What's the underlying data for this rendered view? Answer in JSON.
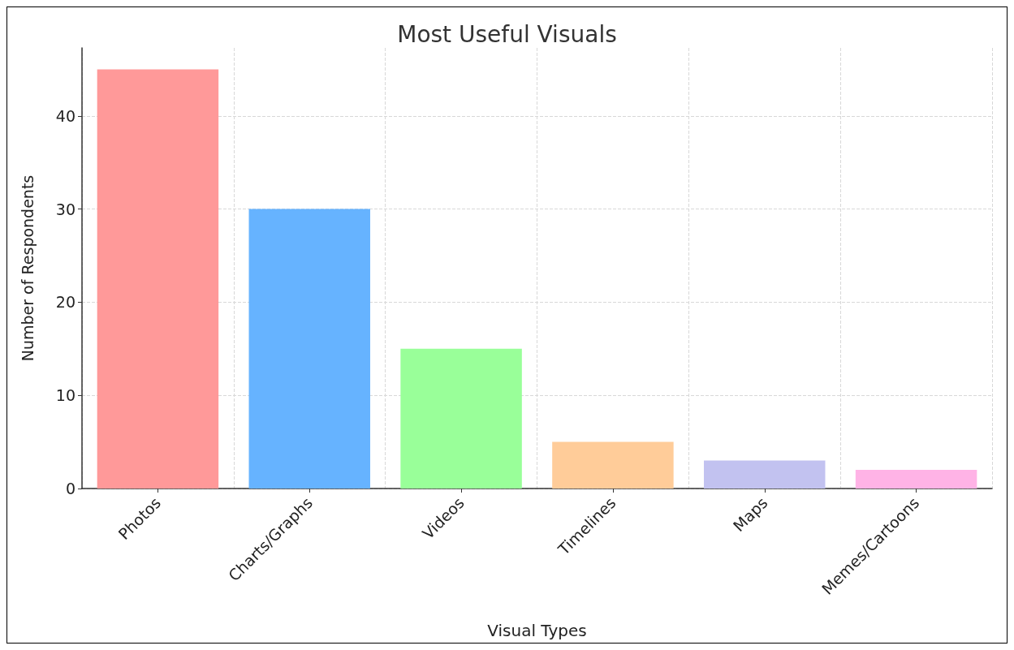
{
  "chart_data": {
    "type": "bar",
    "title": "Most Useful Visuals",
    "xlabel": "Visual Types",
    "ylabel": "Number of Respondents",
    "categories": [
      "Photos",
      "Charts/Graphs",
      "Videos",
      "Timelines",
      "Maps",
      "Memes/Cartoons"
    ],
    "values": [
      45,
      30,
      15,
      5,
      3,
      2
    ],
    "colors": [
      "#ff9999",
      "#66b3ff",
      "#99ff99",
      "#ffcc99",
      "#c2c2f0",
      "#ffb3e6"
    ],
    "ylim": [
      0,
      47.3
    ],
    "yticks": [
      0,
      10,
      20,
      30,
      40
    ],
    "grid": true
  }
}
